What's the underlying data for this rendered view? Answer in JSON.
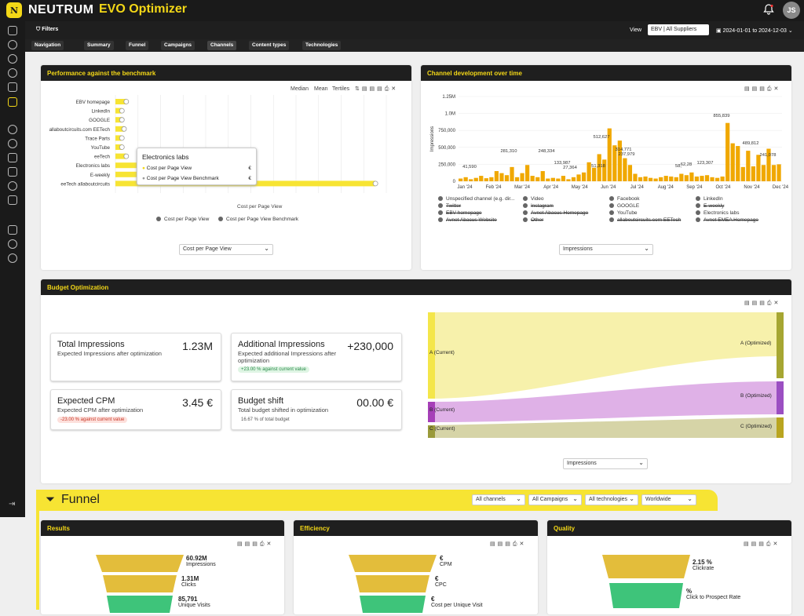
{
  "app": {
    "brand": "NEUTRUM",
    "product": "EVO Optimizer",
    "avatar": "JS"
  },
  "filterbar": {
    "filters": "Filters",
    "view_label": "View",
    "view_value": "EBV | All Suppliers",
    "date_range": "2024-01-01 to 2024-12-03"
  },
  "tabs": [
    "Navigation",
    "Summary",
    "Funnel",
    "Campaigns",
    "Channels",
    "Content types",
    "Technologies"
  ],
  "benchmark": {
    "title": "Performance against the benchmark",
    "tools": [
      "Median",
      "Mean",
      "Tertiles"
    ],
    "tooltip": {
      "title": "Electronics labs",
      "row1": "Cost per Page View",
      "row2": "Cost per Page View Benchmark",
      "val1": "€",
      "val2": "€"
    },
    "xlabel": "Cost per Page View",
    "legend": [
      "Cost per Page View",
      "Cost per Page View Benchmark"
    ],
    "select": "Cost per Page View"
  },
  "development": {
    "title": "Channel development over time",
    "ylabel": "Impressions",
    "yticks": [
      "1.25M",
      "1.0M",
      "750,000",
      "500,000",
      "250,000",
      "0"
    ],
    "xticks": [
      "Jan '24",
      "Feb '24",
      "Mar '24",
      "Apr '24",
      "May '24",
      "Jun '24",
      "Jul '24",
      "Aug '24",
      "Sep '24",
      "Oct '24",
      "Nov '24",
      "Dec '24"
    ],
    "labels": [
      "41,590",
      "281,310",
      "248,334",
      "512,627",
      "855,839",
      "314,771",
      "237,979",
      "133,987",
      "27,364",
      "51,318",
      "58,",
      "62,28",
      "123,307",
      "241,078",
      "489,812"
    ],
    "legend": [
      "Unspecified channel (e.g. dir...",
      "Video",
      "Facebook",
      "LinkedIn",
      "Twitter",
      "Instagram",
      "GOOGLE",
      "E-weekly",
      "EBV-homepage",
      "Avnet Abacus Homepage",
      "YouTube",
      "Electronics labs",
      "Avnet Abacus Website",
      "Other",
      "allaboutcircuits.com EETech",
      "Avnet EMEA Homepage"
    ],
    "select": "Impressions"
  },
  "chart_data": [
    {
      "type": "bar",
      "title": "Performance against the benchmark",
      "xlabel": "Cost per Page View",
      "categories": [
        "EBV homepage",
        "LinkedIn",
        "GOOGLE",
        "allaboutcircuits.com EETech",
        "Trace Parts",
        "YouTube",
        "eeTech",
        "Electronics labs",
        "E-weekly",
        "eeTech allaboutcircuits"
      ],
      "series": [
        {
          "name": "Cost per Page View",
          "values": [
            0.5,
            0.3,
            0.3,
            0.4,
            0.3,
            0.3,
            0.5,
            2.0,
            2.2,
            12.0
          ]
        }
      ]
    },
    {
      "type": "bar",
      "title": "Channel development over time",
      "ylabel": "Impressions",
      "xticks": [
        "Jan '24",
        "Feb '24",
        "Mar '24",
        "Apr '24",
        "May '24",
        "Jun '24",
        "Jul '24",
        "Aug '24",
        "Sep '24",
        "Oct '24",
        "Nov '24",
        "Dec '24"
      ],
      "ylim": [
        0,
        1250000
      ],
      "values": [
        40000,
        60000,
        30000,
        50000,
        80000,
        45000,
        60000,
        150000,
        120000,
        90000,
        210000,
        60000,
        120000,
        240000,
        80000,
        60000,
        150000,
        40000,
        50000,
        40000,
        80000,
        30000,
        60000,
        100000,
        130000,
        280000,
        200000,
        400000,
        320000,
        780000,
        530000,
        600000,
        340000,
        240000,
        110000,
        60000,
        70000,
        50000,
        40000,
        60000,
        80000,
        70000,
        60000,
        110000,
        90000,
        130000,
        70000,
        80000,
        90000,
        60000,
        50000,
        70000,
        860000,
        560000,
        520000,
        210000,
        450000,
        220000,
        390000,
        240000,
        480000,
        240000,
        250000
      ]
    }
  ],
  "budget": {
    "title": "Budget Optimization",
    "cards": [
      {
        "title": "Total Impressions",
        "sub": "Expected Impressions after optimization",
        "value": "1.23M",
        "badge": ""
      },
      {
        "title": "Additional Impressions",
        "sub": "Expected additional Impressions after optimization",
        "value": "+230,000",
        "badge": "+23.00 % against current value"
      },
      {
        "title": "Expected CPM",
        "sub": "Expected CPM after optimization",
        "value": "3.45 €",
        "badge": "-23.00 % against current value"
      },
      {
        "title": "Budget shift",
        "sub": "Total budget shifted in optimization",
        "value": "00.00 €",
        "badge": "16.67 % of total budget"
      }
    ],
    "sankey_left": [
      "A (Current)",
      "B (Current)",
      "C (Current)"
    ],
    "sankey_right": [
      "A (Optimized)",
      "B (Optimized)",
      "C (Optimized)"
    ],
    "select": "Impressions"
  },
  "funnel": {
    "title": "Funnel",
    "filters": [
      "All channels",
      "All Campaigns",
      "All technologies",
      "Worldwide"
    ],
    "results": {
      "title": "Results",
      "rows": [
        {
          "v": "60.92M",
          "l": "Impressions"
        },
        {
          "v": "1.31M",
          "l": "Clicks"
        },
        {
          "v": "85,791",
          "l": "Unique Visits"
        }
      ]
    },
    "efficiency": {
      "title": "Efficiency",
      "rows": [
        {
          "v": "€",
          "l": "CPM"
        },
        {
          "v": "€",
          "l": "CPC"
        },
        {
          "v": "€",
          "l": "Cost per Unique Visit"
        }
      ]
    },
    "quality": {
      "title": "Quality",
      "rows": [
        {
          "v": "2.15 %",
          "l": "Clickrate"
        },
        {
          "v": "%",
          "l": "Click to Prospect Rate"
        }
      ]
    }
  },
  "colors": {
    "accent": "#f4d817",
    "dark": "#1f1f1f",
    "bar": "#f0a800",
    "green": "#3ec47a",
    "purple": "#c77fd6",
    "olive": "#c2c07a"
  }
}
